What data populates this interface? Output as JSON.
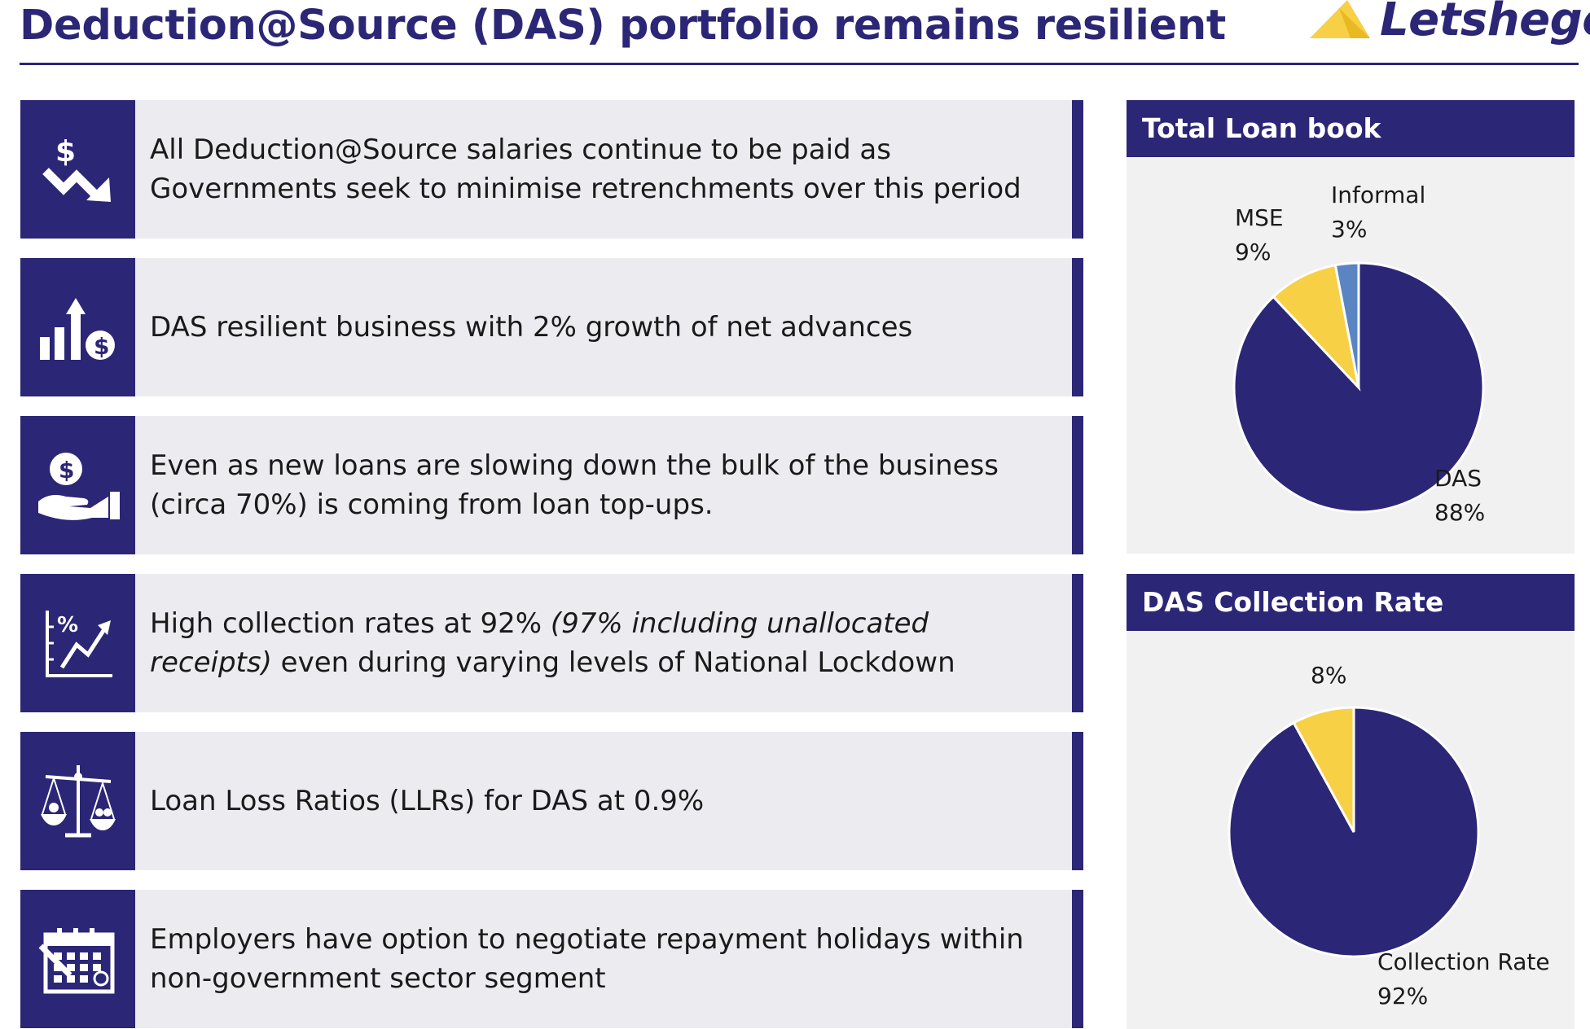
{
  "header": {
    "title": "Deduction@Source (DAS) portfolio remains resilient",
    "logo_text": "Letshego"
  },
  "points": [
    {
      "icon": "dollar-down-arrow-icon",
      "text": "All Deduction@Source salaries continue to be paid as Governments seek to minimise retrenchments over this period"
    },
    {
      "icon": "growth-chart-dollar-icon",
      "text": "DAS resilient business with 2% growth of net advances"
    },
    {
      "icon": "hand-coin-icon",
      "text": "Even as new loans are slowing down the bulk of the business (circa 70%) is coming from loan top-ups."
    },
    {
      "icon": "percent-trend-chart-icon",
      "text_plain": "High collection rates at 92% ",
      "text_italic": "(97% including unallocated receipts)",
      "text_after": " even during varying levels of National Lockdown"
    },
    {
      "icon": "balance-scale-icon",
      "text": "Loan Loss Ratios (LLRs) for DAS at 0.9%"
    },
    {
      "icon": "calendar-icon",
      "text": "Employers have option to negotiate repayment holidays within non-government sector segment"
    }
  ],
  "colors": {
    "primary": "#2b2676",
    "yellow": "#f7d046",
    "blue": "#5b85c2",
    "row_bg": "#ebebf0",
    "panel_bg": "#f1f1f1"
  },
  "chart_data": [
    {
      "type": "pie",
      "title": "Total Loan book",
      "slices": [
        {
          "label": "DAS",
          "value_label": "88%",
          "value": 88,
          "color": "#2b2676"
        },
        {
          "label": "MSE",
          "value_label": "9%",
          "value": 9,
          "color": "#f7d046"
        },
        {
          "label": "Informal",
          "value_label": "3%",
          "value": 3,
          "color": "#5b85c2"
        }
      ]
    },
    {
      "type": "pie",
      "title": "DAS Collection Rate",
      "slices": [
        {
          "label": "Collection Rate",
          "value_label": "92%",
          "value": 92,
          "color": "#2b2676"
        },
        {
          "label": "",
          "value_label": "8%",
          "value": 8,
          "color": "#f7d046"
        }
      ]
    }
  ]
}
